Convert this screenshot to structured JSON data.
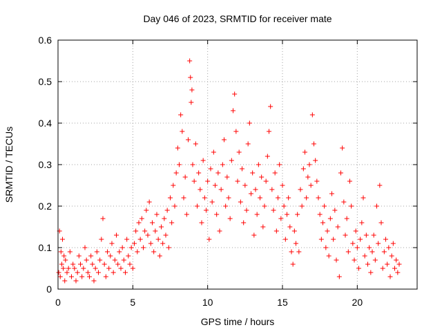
{
  "chart_data": {
    "type": "scatter",
    "title": "Day 046 of 2023, SRMTID for receiver mate",
    "xlabel": "GPS time / hours",
    "ylabel": "SRMTID / TECUs",
    "xlim": [
      0,
      24
    ],
    "ylim": [
      0,
      0.6
    ],
    "xticks": [
      0,
      5,
      10,
      15,
      20
    ],
    "yticks": [
      0,
      0.1,
      0.2,
      0.3,
      0.4,
      0.5,
      0.6
    ],
    "xtick_labels": [
      "0",
      "5",
      "10",
      "15",
      "20"
    ],
    "ytick_labels": [
      "0",
      "0.1",
      "0.2",
      "0.3",
      "0.4",
      "0.5",
      "0.6"
    ],
    "grid": true,
    "marker": "+",
    "marker_color": "#ff0000",
    "series": [
      {
        "name": "SRMTID",
        "points": [
          [
            0.05,
            0.04
          ],
          [
            0.1,
            0.14
          ],
          [
            0.15,
            0.03
          ],
          [
            0.2,
            0.09
          ],
          [
            0.25,
            0.06
          ],
          [
            0.3,
            0.12
          ],
          [
            0.35,
            0.05
          ],
          [
            0.4,
            0.08
          ],
          [
            0.45,
            0.02
          ],
          [
            0.5,
            0.07
          ],
          [
            0.6,
            0.04
          ],
          [
            0.7,
            0.05
          ],
          [
            0.8,
            0.09
          ],
          [
            0.9,
            0.03
          ],
          [
            1.0,
            0.06
          ],
          [
            1.1,
            0.05
          ],
          [
            1.2,
            0.02
          ],
          [
            1.3,
            0.04
          ],
          [
            1.4,
            0.08
          ],
          [
            1.5,
            0.06
          ],
          [
            1.6,
            0.03
          ],
          [
            1.7,
            0.05
          ],
          [
            1.8,
            0.1
          ],
          [
            1.9,
            0.07
          ],
          [
            2.0,
            0.04
          ],
          [
            2.1,
            0.03
          ],
          [
            2.2,
            0.08
          ],
          [
            2.3,
            0.06
          ],
          [
            2.4,
            0.02
          ],
          [
            2.5,
            0.05
          ],
          [
            2.6,
            0.09
          ],
          [
            2.7,
            0.04
          ],
          [
            2.8,
            0.07
          ],
          [
            2.9,
            0.12
          ],
          [
            3.0,
            0.17
          ],
          [
            3.1,
            0.06
          ],
          [
            3.2,
            0.03
          ],
          [
            3.3,
            0.09
          ],
          [
            3.4,
            0.05
          ],
          [
            3.5,
            0.08
          ],
          [
            3.6,
            0.11
          ],
          [
            3.7,
            0.04
          ],
          [
            3.8,
            0.07
          ],
          [
            3.9,
            0.13
          ],
          [
            4.0,
            0.06
          ],
          [
            4.1,
            0.09
          ],
          [
            4.2,
            0.05
          ],
          [
            4.3,
            0.1
          ],
          [
            4.4,
            0.07
          ],
          [
            4.5,
            0.04
          ],
          [
            4.6,
            0.12
          ],
          [
            4.7,
            0.08
          ],
          [
            4.8,
            0.06
          ],
          [
            4.9,
            0.1
          ],
          [
            5.0,
            0.05
          ],
          [
            5.1,
            0.11
          ],
          [
            5.2,
            0.14
          ],
          [
            5.3,
            0.09
          ],
          [
            5.4,
            0.16
          ],
          [
            5.5,
            0.12
          ],
          [
            5.6,
            0.17
          ],
          [
            5.7,
            0.1
          ],
          [
            5.8,
            0.14
          ],
          [
            5.9,
            0.19
          ],
          [
            6.0,
            0.13
          ],
          [
            6.1,
            0.21
          ],
          [
            6.2,
            0.11
          ],
          [
            6.3,
            0.16
          ],
          [
            6.4,
            0.09
          ],
          [
            6.5,
            0.14
          ],
          [
            6.6,
            0.18
          ],
          [
            6.7,
            0.12
          ],
          [
            6.8,
            0.08
          ],
          [
            6.9,
            0.15
          ],
          [
            7.0,
            0.11
          ],
          [
            7.1,
            0.17
          ],
          [
            7.2,
            0.13
          ],
          [
            7.3,
            0.19
          ],
          [
            7.4,
            0.1
          ],
          [
            7.5,
            0.22
          ],
          [
            7.6,
            0.16
          ],
          [
            7.7,
            0.25
          ],
          [
            7.8,
            0.2
          ],
          [
            7.9,
            0.28
          ],
          [
            8.0,
            0.34
          ],
          [
            8.1,
            0.3
          ],
          [
            8.2,
            0.42
          ],
          [
            8.3,
            0.38
          ],
          [
            8.4,
            0.22
          ],
          [
            8.5,
            0.27
          ],
          [
            8.6,
            0.18
          ],
          [
            8.7,
            0.36
          ],
          [
            8.8,
            0.55
          ],
          [
            8.85,
            0.51
          ],
          [
            8.9,
            0.45
          ],
          [
            8.95,
            0.48
          ],
          [
            9.0,
            0.3
          ],
          [
            9.1,
            0.26
          ],
          [
            9.2,
            0.35
          ],
          [
            9.3,
            0.2
          ],
          [
            9.4,
            0.28
          ],
          [
            9.5,
            0.24
          ],
          [
            9.6,
            0.16
          ],
          [
            9.7,
            0.31
          ],
          [
            9.8,
            0.22
          ],
          [
            9.9,
            0.19
          ],
          [
            10.0,
            0.26
          ],
          [
            10.1,
            0.12
          ],
          [
            10.2,
            0.29
          ],
          [
            10.3,
            0.21
          ],
          [
            10.4,
            0.33
          ],
          [
            10.5,
            0.25
          ],
          [
            10.6,
            0.18
          ],
          [
            10.7,
            0.28
          ],
          [
            10.8,
            0.14
          ],
          [
            10.9,
            0.24
          ],
          [
            11.0,
            0.3
          ],
          [
            11.1,
            0.36
          ],
          [
            11.2,
            0.2
          ],
          [
            11.3,
            0.27
          ],
          [
            11.4,
            0.22
          ],
          [
            11.5,
            0.17
          ],
          [
            11.6,
            0.31
          ],
          [
            11.7,
            0.43
          ],
          [
            11.8,
            0.47
          ],
          [
            11.9,
            0.38
          ],
          [
            12.0,
            0.26
          ],
          [
            12.1,
            0.33
          ],
          [
            12.2,
            0.21
          ],
          [
            12.3,
            0.29
          ],
          [
            12.4,
            0.16
          ],
          [
            12.5,
            0.25
          ],
          [
            12.6,
            0.19
          ],
          [
            12.7,
            0.35
          ],
          [
            12.8,
            0.4
          ],
          [
            12.9,
            0.23
          ],
          [
            13.0,
            0.28
          ],
          [
            13.1,
            0.13
          ],
          [
            13.2,
            0.24
          ],
          [
            13.3,
            0.18
          ],
          [
            13.4,
            0.3
          ],
          [
            13.5,
            0.22
          ],
          [
            13.6,
            0.27
          ],
          [
            13.7,
            0.15
          ],
          [
            13.8,
            0.2
          ],
          [
            13.9,
            0.26
          ],
          [
            14.0,
            0.32
          ],
          [
            14.1,
            0.38
          ],
          [
            14.2,
            0.44
          ],
          [
            14.3,
            0.24
          ],
          [
            14.4,
            0.19
          ],
          [
            14.5,
            0.28
          ],
          [
            14.6,
            0.14
          ],
          [
            14.7,
            0.22
          ],
          [
            14.8,
            0.3
          ],
          [
            14.9,
            0.17
          ],
          [
            15.0,
            0.25
          ],
          [
            15.1,
            0.2
          ],
          [
            15.2,
            0.12
          ],
          [
            15.3,
            0.18
          ],
          [
            15.4,
            0.22
          ],
          [
            15.5,
            0.15
          ],
          [
            15.6,
            0.09
          ],
          [
            15.7,
            0.06
          ],
          [
            15.8,
            0.14
          ],
          [
            15.9,
            0.11
          ],
          [
            16.0,
            0.18
          ],
          [
            16.1,
            0.09
          ],
          [
            16.2,
            0.24
          ],
          [
            16.3,
            0.2
          ],
          [
            16.4,
            0.29
          ],
          [
            16.5,
            0.33
          ],
          [
            16.6,
            0.22
          ],
          [
            16.7,
            0.27
          ],
          [
            16.8,
            0.3
          ],
          [
            16.9,
            0.25
          ],
          [
            17.0,
            0.42
          ],
          [
            17.1,
            0.35
          ],
          [
            17.2,
            0.31
          ],
          [
            17.3,
            0.26
          ],
          [
            17.4,
            0.22
          ],
          [
            17.5,
            0.18
          ],
          [
            17.6,
            0.12
          ],
          [
            17.7,
            0.16
          ],
          [
            17.8,
            0.2
          ],
          [
            17.9,
            0.1
          ],
          [
            18.0,
            0.14
          ],
          [
            18.1,
            0.08
          ],
          [
            18.2,
            0.17
          ],
          [
            18.3,
            0.23
          ],
          [
            18.4,
            0.12
          ],
          [
            18.5,
            0.19
          ],
          [
            18.6,
            0.07
          ],
          [
            18.7,
            0.15
          ],
          [
            18.8,
            0.03
          ],
          [
            18.9,
            0.28
          ],
          [
            19.0,
            0.34
          ],
          [
            19.1,
            0.21
          ],
          [
            19.2,
            0.13
          ],
          [
            19.3,
            0.17
          ],
          [
            19.4,
            0.09
          ],
          [
            19.5,
            0.26
          ],
          [
            19.6,
            0.2
          ],
          [
            19.7,
            0.11
          ],
          [
            19.8,
            0.07
          ],
          [
            19.9,
            0.14
          ],
          [
            20.0,
            0.1
          ],
          [
            20.1,
            0.05
          ],
          [
            20.2,
            0.12
          ],
          [
            20.3,
            0.16
          ],
          [
            20.4,
            0.22
          ],
          [
            20.5,
            0.08
          ],
          [
            20.6,
            0.13
          ],
          [
            20.7,
            0.06
          ],
          [
            20.8,
            0.1
          ],
          [
            20.9,
            0.04
          ],
          [
            21.0,
            0.09
          ],
          [
            21.1,
            0.13
          ],
          [
            21.2,
            0.07
          ],
          [
            21.3,
            0.2
          ],
          [
            21.4,
            0.11
          ],
          [
            21.5,
            0.25
          ],
          [
            21.6,
            0.16
          ],
          [
            21.7,
            0.05
          ],
          [
            21.8,
            0.09
          ],
          [
            21.9,
            0.12
          ],
          [
            22.0,
            0.06
          ],
          [
            22.1,
            0.1
          ],
          [
            22.2,
            0.03
          ],
          [
            22.3,
            0.08
          ],
          [
            22.4,
            0.11
          ],
          [
            22.5,
            0.05
          ],
          [
            22.6,
            0.07
          ],
          [
            22.7,
            0.04
          ],
          [
            22.8,
            0.06
          ]
        ]
      }
    ]
  }
}
